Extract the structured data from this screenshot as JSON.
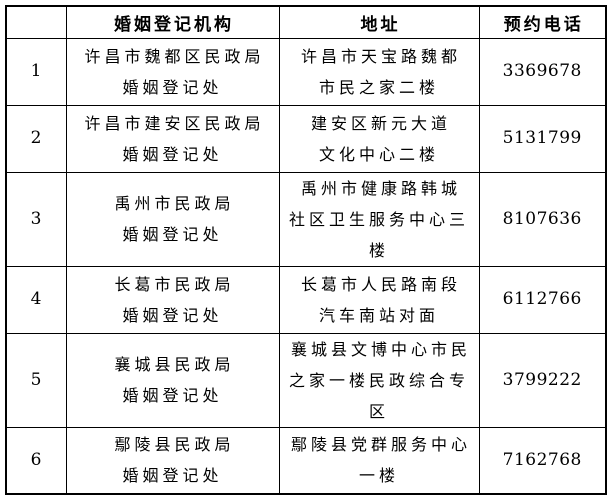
{
  "page": {
    "background_color": "#ffffff",
    "border_color": "#000000"
  },
  "table": {
    "headers": {
      "num": "",
      "org": "婚姻登记机构",
      "addr": "地址",
      "phone": "预约电话"
    },
    "rows": [
      {
        "num": "1",
        "org": "许昌市魏都区民政局\n婚姻登记处",
        "addr": "许昌市天宝路魏都\n市民之家二楼",
        "phone": "3369678"
      },
      {
        "num": "2",
        "org": "许昌市建安区民政局\n婚姻登记处",
        "addr": "建安区新元大道\n文化中心二楼",
        "phone": "5131799"
      },
      {
        "num": "3",
        "org": "禹州市民政局\n婚姻登记处",
        "addr": "禹州市健康路韩城\n社区卫生服务中心三楼",
        "phone": "8107636"
      },
      {
        "num": "4",
        "org": "长葛市民政局\n婚姻登记处",
        "addr": "长葛市人民路南段\n汽车南站对面",
        "phone": "6112766"
      },
      {
        "num": "5",
        "org": "襄城县民政局\n婚姻登记处",
        "addr": "襄城县文博中心市民\n之家一楼民政综合专区",
        "phone": "3799222"
      },
      {
        "num": "6",
        "org": "鄢陵县民政局\n婚姻登记处",
        "addr": "鄢陵县党群服务中心\n一楼",
        "phone": "7162768"
      }
    ]
  }
}
